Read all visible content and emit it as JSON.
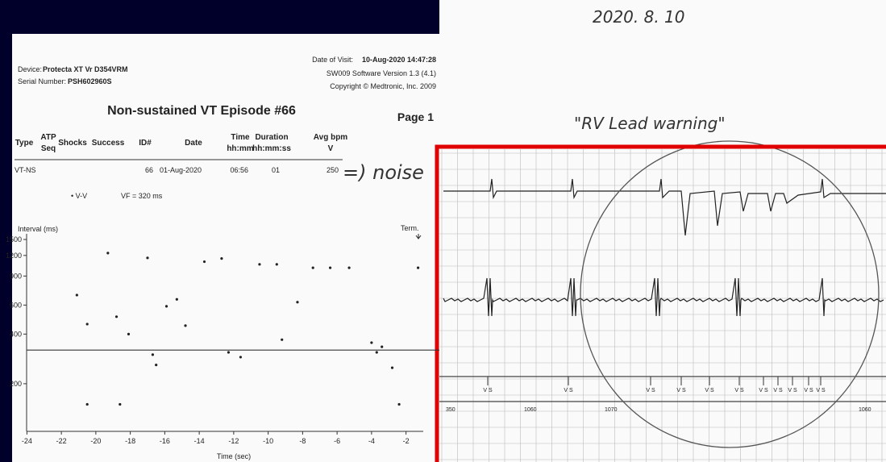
{
  "header": {
    "device_label": "Device:",
    "device": "Protecta XT Vr D354VRM",
    "serial_label": "Serial Number:",
    "serial": "PSH602960S",
    "visit_label": "Date of Visit:",
    "visit": "10-Aug-2020 14:47:28",
    "software": "SW009 Software Version 1.3 (4.1)",
    "copyright": "Copyright © Medtronic, Inc. 2009"
  },
  "title": "Non-sustained VT Episode #66",
  "page": "Page 1",
  "table": {
    "columns": [
      [
        "Type"
      ],
      [
        "ATP",
        "Seq"
      ],
      [
        "Shocks"
      ],
      [
        "Success"
      ],
      [
        "ID#"
      ],
      [
        "Date"
      ],
      [
        "Time",
        "hh:mm"
      ],
      [
        "Duration",
        "hh:mm:ss"
      ],
      [
        "Avg bpm",
        "V"
      ]
    ],
    "rows": [
      [
        "VT-NS",
        null,
        null,
        null,
        "66",
        "01-Aug-2020",
        "06:56",
        "01",
        "250"
      ]
    ]
  },
  "noise_note": "=) noise",
  "legend": {
    "marker": "• V-V",
    "vf": "VF = 320 ms"
  },
  "term": "Term.",
  "chart_data": {
    "type": "scatter",
    "y_label": "Interval (ms)",
    "x_label": "Time (sec)",
    "log_y": true,
    "xlim": [
      -25,
      -1
    ],
    "ylim": [
      110,
      1500
    ],
    "xticks": [
      -24,
      -22,
      -20,
      -18,
      -16,
      -14,
      -12,
      -10,
      -8,
      -6,
      -4,
      -2
    ],
    "yticks": [
      1500,
      1200,
      900,
      600,
      400,
      200
    ],
    "vf_threshold": 320,
    "color": "#222222",
    "x": [
      -21.1,
      -20.5,
      -20.5,
      -19.3,
      -18.8,
      -18.6,
      -18.1,
      -17.0,
      -16.7,
      -16.5,
      -15.9,
      -15.3,
      -14.8,
      -13.7,
      -12.7,
      -12.3,
      -11.6,
      -10.5,
      -9.5,
      -9.2,
      -8.3,
      -7.4,
      -6.4,
      -5.3,
      -4.0,
      -3.7,
      -3.4,
      -2.8,
      -2.4,
      -1.3
    ],
    "values": [
      690,
      460,
      150,
      1240,
      510,
      150,
      400,
      1160,
      300,
      260,
      590,
      650,
      450,
      1100,
      1150,
      310,
      290,
      1060,
      1060,
      370,
      625,
      1010,
      1010,
      1010,
      355,
      310,
      335,
      250,
      150,
      1010
    ]
  },
  "handwriting": {
    "date": "2020. 8. 10",
    "warning": "\"RV Lead warning\""
  },
  "ecg": {
    "scale_labels": [
      "350",
      "1060",
      "1070",
      "1060"
    ],
    "markers": [
      "V S",
      "V S",
      "V S",
      "V S",
      "V S",
      "V S",
      "V S",
      "V S",
      "V S",
      "V S",
      "V S"
    ]
  }
}
